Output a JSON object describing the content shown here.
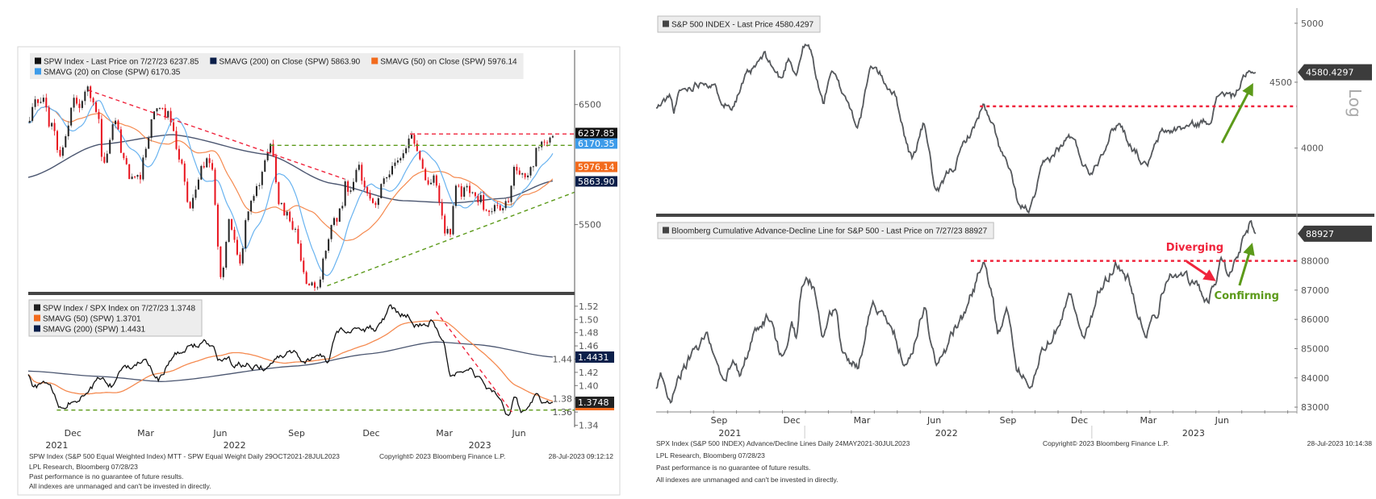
{
  "left_panel": {
    "footer": {
      "source": "SPW Index (S&P 500 Equal Weighted Index) MTT - SPW Equal Weight  Daily 29OCT2021-28JUL2023",
      "copyright": "Copyright© 2023 Bloomberg Finance L.P.",
      "timestamp": "28-Jul-2023 09:12:12",
      "credit": "LPL Research, Bloomberg 07/28/23",
      "disclaimer1": "Past performance is no guarantee of future results.",
      "disclaimer2": "All indexes are unmanaged and can't be invested in directly."
    }
  },
  "right_panel": {
    "footer": {
      "source": "SPX Index (S&P 500 INDEX) Advance/Decline Lines  Daily 24MAY2021-30JUL2023",
      "copyright": "Copyright© 2023 Bloomberg Finance L.P.",
      "timestamp": "28-Jul-2023 10:14:38",
      "credit": "LPL Research, Bloomberg 07/28/23",
      "disclaimer1": "Past performance is no guarantee of future results.",
      "disclaimer2": "All indexes are unmanaged and can't be invested in directly."
    },
    "scale_label": "Log"
  },
  "colors": {
    "up": "#222222",
    "down": "#e8141e",
    "sma200": "#4b5670",
    "sma50": "#f58a50",
    "sma20": "#69b3f0",
    "line": "#55585c",
    "red_ann": "#f0243c",
    "green_ann": "#5c9a1a"
  },
  "chart_data": [
    {
      "id": "spw_price",
      "type": "candlestick",
      "x_unit": "months since late Oct 2021",
      "xlim": [
        0,
        18.75
      ],
      "ylim": [
        4940,
        6780
      ],
      "yticks": [
        5500,
        6500
      ],
      "legend": [
        {
          "text": "SPW Index - Last Price on 7/27/23 6237.85",
          "color": "#111111"
        },
        {
          "text": "SMAVG (200)  on Close (SPW) 5863.90",
          "color": "#0b1f4a"
        },
        {
          "text": "SMAVG (50)  on Close (SPW) 5976.14",
          "color": "#f26b1d"
        },
        {
          "text": "SMAVG (20)  on Close (SPW)       6170.35",
          "color": "#3d9be9"
        }
      ],
      "last_values": [
        {
          "text": "6237.85",
          "value": 6237.85,
          "color": "#111111"
        },
        {
          "text": "6170.35",
          "value": 6170.35,
          "color": "#3d9be9"
        },
        {
          "text": "5976.14",
          "value": 5976.14,
          "color": "#f26b1d"
        },
        {
          "text": "5863.90",
          "value": 5863.9,
          "color": "#0b1f4a"
        }
      ],
      "price": [
        [
          0,
          6345
        ],
        [
          0.43,
          6500
        ],
        [
          0.67,
          6512
        ],
        [
          1.09,
          6084
        ],
        [
          1.52,
          6417
        ],
        [
          1.82,
          6536
        ],
        [
          2.06,
          6620
        ],
        [
          2.42,
          6464
        ],
        [
          2.6,
          5964
        ],
        [
          3.02,
          6417
        ],
        [
          3.5,
          5870
        ],
        [
          3.86,
          5941
        ],
        [
          4.4,
          6464
        ],
        [
          5.0,
          6429
        ],
        [
          5.19,
          6060
        ],
        [
          5.61,
          5607
        ],
        [
          6.09,
          5964
        ],
        [
          6.39,
          5988
        ],
        [
          6.63,
          5060
        ],
        [
          6.93,
          5465
        ],
        [
          7.35,
          5203
        ],
        [
          7.53,
          5584
        ],
        [
          7.96,
          5822
        ],
        [
          8.32,
          6130
        ],
        [
          8.8,
          5631
        ],
        [
          9.16,
          5536
        ],
        [
          9.52,
          5060
        ],
        [
          9.76,
          5013
        ],
        [
          10.0,
          5108
        ],
        [
          10.36,
          5441
        ],
        [
          10.78,
          5607
        ],
        [
          10.9,
          5822
        ],
        [
          11.38,
          5941
        ],
        [
          11.92,
          5560
        ],
        [
          12.58,
          5990
        ],
        [
          13.06,
          6255
        ],
        [
          13.36,
          6080
        ],
        [
          13.97,
          5893
        ],
        [
          14.21,
          5488
        ],
        [
          14.51,
          5417
        ],
        [
          14.69,
          5774
        ],
        [
          15.17,
          5810
        ],
        [
          15.77,
          5650
        ],
        [
          16.3,
          5540
        ],
        [
          16.85,
          5940
        ],
        [
          17.09,
          5830
        ],
        [
          17.33,
          6050
        ],
        [
          17.57,
          6160
        ],
        [
          17.8,
          6215
        ],
        [
          18.0,
          6237.85
        ]
      ],
      "sma200": [
        [
          0,
          5893
        ],
        [
          2.42,
          6167
        ],
        [
          4.95,
          6250
        ],
        [
          8.2,
          6084
        ],
        [
          10.36,
          5845
        ],
        [
          12.77,
          5700
        ],
        [
          14.57,
          5680
        ],
        [
          16.38,
          5720
        ],
        [
          18.0,
          5863.9
        ]
      ],
      "sma50_window": 50,
      "sma20_window": 20,
      "trendlines": [
        {
          "from": [
            2.06,
            6620
          ],
          "to": [
            10.85,
            5880
          ],
          "color": "red"
        },
        {
          "from": [
            13.1,
            6255
          ],
          "to": [
            18.75,
            6255
          ],
          "color": "red"
        },
        {
          "from": [
            8.3,
            6160
          ],
          "to": [
            18.75,
            6160
          ],
          "color": "green"
        },
        {
          "from": [
            10.26,
            4990
          ],
          "to": [
            18.75,
            5770
          ],
          "color": "green"
        }
      ]
    },
    {
      "id": "spw_spx_ratio",
      "type": "line",
      "xlim": [
        0,
        18.75
      ],
      "ylim": [
        1.337,
        1.532
      ],
      "yticks": [
        1.34,
        1.36,
        1.38,
        1.4,
        1.42,
        1.44,
        1.46,
        1.48,
        1.5,
        1.52
      ],
      "xticks": [
        {
          "t": 1.53,
          "label": "Dec"
        },
        {
          "t": 4.03,
          "label": "Mar"
        },
        {
          "t": 6.59,
          "label": "Jun"
        },
        {
          "t": 9.21,
          "label": "Sep"
        },
        {
          "t": 11.77,
          "label": "Dec"
        },
        {
          "t": 14.28,
          "label": "Mar"
        },
        {
          "t": 16.84,
          "label": "Jun"
        }
      ],
      "year_labels": [
        {
          "t": 0.98,
          "label": "2021"
        },
        {
          "t": 7.08,
          "label": "2022"
        },
        {
          "t": 15.5,
          "label": "2023"
        }
      ],
      "legend": [
        {
          "text": "SPW Index / SPX Index on 7/27/23 1.3748",
          "color": "#222222"
        },
        {
          "text": "SMAVG (50) (SPW)                1.3701",
          "color": "#f26b1d"
        },
        {
          "text": "SMAVG (200) (SPW)               1.4431",
          "color": "#0b1f4a"
        }
      ],
      "last_values": [
        {
          "text": "1.4431",
          "value": 1.4431,
          "color": "#0b1f4a"
        },
        {
          "text": "1.3748",
          "value": 1.3748,
          "color": "#222222"
        }
      ],
      "ratio": [
        [
          0,
          1.416
        ],
        [
          0.18,
          1.396
        ],
        [
          0.67,
          1.404
        ],
        [
          1.1,
          1.365
        ],
        [
          1.53,
          1.377
        ],
        [
          2.01,
          1.385
        ],
        [
          2.5,
          1.412
        ],
        [
          2.87,
          1.4
        ],
        [
          3.1,
          1.42
        ],
        [
          3.97,
          1.444
        ],
        [
          4.45,
          1.408
        ],
        [
          5.06,
          1.448
        ],
        [
          6.04,
          1.466
        ],
        [
          6.65,
          1.436
        ],
        [
          7.38,
          1.432
        ],
        [
          8.1,
          1.428
        ],
        [
          9.08,
          1.454
        ],
        [
          9.5,
          1.43
        ],
        [
          9.95,
          1.454
        ],
        [
          10.3,
          1.438
        ],
        [
          10.6,
          1.483
        ],
        [
          11.3,
          1.485
        ],
        [
          12.0,
          1.487
        ],
        [
          12.4,
          1.515
        ],
        [
          13.0,
          1.507
        ],
        [
          13.25,
          1.495
        ],
        [
          13.9,
          1.499
        ],
        [
          14.2,
          1.472
        ],
        [
          14.5,
          1.418
        ],
        [
          15.07,
          1.432
        ],
        [
          15.4,
          1.418
        ],
        [
          15.9,
          1.393
        ],
        [
          16.5,
          1.355
        ],
        [
          16.66,
          1.377
        ],
        [
          17.0,
          1.357
        ],
        [
          17.5,
          1.387
        ],
        [
          17.7,
          1.373
        ],
        [
          18.0,
          1.3748
        ]
      ],
      "sma200": [
        [
          0,
          1.422
        ],
        [
          2.4,
          1.414
        ],
        [
          4.6,
          1.406
        ],
        [
          9.3,
          1.43
        ],
        [
          11.7,
          1.448
        ],
        [
          13.97,
          1.466
        ],
        [
          15.4,
          1.462
        ],
        [
          18.0,
          1.4431
        ]
      ],
      "sma50_window": 50,
      "trendlines": [
        {
          "from": [
            0.98,
            1.363
          ],
          "to": [
            18.75,
            1.363
          ],
          "color": "green"
        },
        {
          "from": [
            14.0,
            1.512
          ],
          "to": [
            16.6,
            1.36
          ],
          "color": "red"
        }
      ]
    },
    {
      "id": "sp500",
      "type": "line",
      "scale": "log",
      "x_unit": "months since 24 May 2021",
      "xlim": [
        0,
        27.9
      ],
      "ylim": [
        3563,
        5123
      ],
      "yticks": [
        4000,
        4500,
        5000
      ],
      "legend": [
        {
          "text": "S&P 500 INDEX - Last Price 4580.4297",
          "color": "#444444"
        }
      ],
      "last_values": [
        {
          "text": "4580.4297",
          "value": 4580.4297,
          "color": "#3c3c3c"
        }
      ],
      "series": [
        [
          0,
          4295
        ],
        [
          0.64,
          4387
        ],
        [
          0.75,
          4264
        ],
        [
          1.07,
          4428
        ],
        [
          2.14,
          4523
        ],
        [
          3.21,
          4313
        ],
        [
          4.07,
          4566
        ],
        [
          4.71,
          4709
        ],
        [
          5.46,
          4523
        ],
        [
          5.78,
          4709
        ],
        [
          6.1,
          4577
        ],
        [
          6.43,
          4799
        ],
        [
          6.64,
          4789
        ],
        [
          7.28,
          4335
        ],
        [
          7.6,
          4588
        ],
        [
          8.14,
          4418
        ],
        [
          8.78,
          4175
        ],
        [
          9.42,
          4631
        ],
        [
          10.28,
          4439
        ],
        [
          11.14,
          3925
        ],
        [
          11.67,
          4175
        ],
        [
          12.21,
          3674
        ],
        [
          12.86,
          3852
        ],
        [
          13.72,
          4116
        ],
        [
          14.25,
          4313
        ],
        [
          14.57,
          4175
        ],
        [
          15.21,
          3907
        ],
        [
          15.86,
          3589
        ],
        [
          16.29,
          3589
        ],
        [
          16.93,
          3889
        ],
        [
          17.57,
          4000
        ],
        [
          18.0,
          4087
        ],
        [
          18.86,
          3834
        ],
        [
          20.14,
          4183
        ],
        [
          20.79,
          4000
        ],
        [
          21.32,
          3870
        ],
        [
          22.07,
          4116
        ],
        [
          23.14,
          4155
        ],
        [
          24.0,
          4195
        ],
        [
          24.64,
          4428
        ],
        [
          25.07,
          4384
        ],
        [
          25.71,
          4545
        ],
        [
          26.1,
          4580.43
        ]
      ],
      "trendlines": [
        {
          "from": [
            14.1,
            4310
          ],
          "to": [
            27.9,
            4310
          ],
          "color": "red",
          "style": "dotted"
        }
      ],
      "arrows": [
        {
          "from": [
            24.64,
            4038
          ],
          "to": [
            25.9,
            4459
          ],
          "color": "green"
        }
      ]
    },
    {
      "id": "advance_decline",
      "type": "line",
      "xlim": [
        0,
        27.9
      ],
      "ylim": [
        82836,
        89311
      ],
      "yticks": [
        83000,
        84000,
        85000,
        86000,
        87000,
        88000
      ],
      "xticks": [
        {
          "t": 2.74,
          "label": "Sep"
        },
        {
          "t": 5.91,
          "label": "Dec"
        },
        {
          "t": 8.96,
          "label": "Mar"
        },
        {
          "t": 12.11,
          "label": "Jun"
        },
        {
          "t": 15.32,
          "label": "Sep"
        },
        {
          "t": 18.43,
          "label": "Dec"
        },
        {
          "t": 21.43,
          "label": "Mar"
        },
        {
          "t": 24.64,
          "label": "Jun"
        }
      ],
      "year_labels": [
        {
          "t": 3.21,
          "label": "2021"
        },
        {
          "t": 12.64,
          "label": "2022"
        },
        {
          "t": 23.4,
          "label": "2023"
        }
      ],
      "year_dividers": [
        6.47,
        18.97
      ],
      "legend": [
        {
          "text": "Bloomberg Cumulative Advance-Decline Line for S&P 500 - Last Price on 7/27/23 88927",
          "color": "#444444"
        }
      ],
      "last_values": [
        {
          "text": "88927",
          "value": 88927,
          "color": "#3c3c3c"
        }
      ],
      "series": [
        [
          0,
          83629
        ],
        [
          0.21,
          84113
        ],
        [
          0.64,
          83242
        ],
        [
          0.96,
          84209
        ],
        [
          1.71,
          84886
        ],
        [
          2.25,
          85466
        ],
        [
          2.89,
          83822
        ],
        [
          3.32,
          84499
        ],
        [
          3.64,
          84113
        ],
        [
          4.29,
          85466
        ],
        [
          4.93,
          86095
        ],
        [
          5.46,
          84693
        ],
        [
          5.89,
          85853
        ],
        [
          6.11,
          85273
        ],
        [
          6.32,
          87014
        ],
        [
          6.64,
          87255
        ],
        [
          6.96,
          86917
        ],
        [
          7.29,
          85273
        ],
        [
          7.82,
          86530
        ],
        [
          8.14,
          84693
        ],
        [
          8.79,
          84499
        ],
        [
          9.43,
          86627
        ],
        [
          10.29,
          85563
        ],
        [
          10.93,
          84403
        ],
        [
          11.68,
          86337
        ],
        [
          12.21,
          84403
        ],
        [
          13.29,
          86047
        ],
        [
          13.71,
          86820
        ],
        [
          14.25,
          88029
        ],
        [
          14.57,
          87110
        ],
        [
          14.89,
          85563
        ],
        [
          15.32,
          86240
        ],
        [
          15.75,
          84306
        ],
        [
          16.29,
          83581
        ],
        [
          16.82,
          85080
        ],
        [
          17.46,
          85660
        ],
        [
          18.0,
          86917
        ],
        [
          18.64,
          85466
        ],
        [
          19.39,
          87110
        ],
        [
          20.04,
          87836
        ],
        [
          20.57,
          87304
        ],
        [
          21.32,
          85563
        ],
        [
          21.75,
          86240
        ],
        [
          22.18,
          87207
        ],
        [
          22.61,
          87690
        ],
        [
          23.04,
          87304
        ],
        [
          23.57,
          87110
        ],
        [
          24.0,
          86627
        ],
        [
          24.32,
          87352
        ],
        [
          24.64,
          88126
        ],
        [
          24.96,
          87400
        ],
        [
          25.29,
          88077
        ],
        [
          25.61,
          88658
        ],
        [
          25.9,
          89238
        ],
        [
          26.1,
          88927
        ]
      ],
      "trendlines": [
        {
          "from": [
            13.7,
            88000
          ],
          "to": [
            27.9,
            88000
          ],
          "color": "red",
          "style": "dotted"
        }
      ],
      "arrows": [
        {
          "from": [
            23.1,
            87980
          ],
          "to": [
            24.2,
            87400
          ],
          "color": "red"
        },
        {
          "from": [
            25.4,
            87160
          ],
          "to": [
            25.9,
            88460
          ],
          "color": "green"
        }
      ],
      "annotations": [
        {
          "text": "Diverging",
          "at": [
            22.2,
            88350
          ],
          "color": "red"
        },
        {
          "text": "Confirming",
          "at": [
            24.3,
            86700
          ],
          "color": "green"
        }
      ]
    }
  ]
}
